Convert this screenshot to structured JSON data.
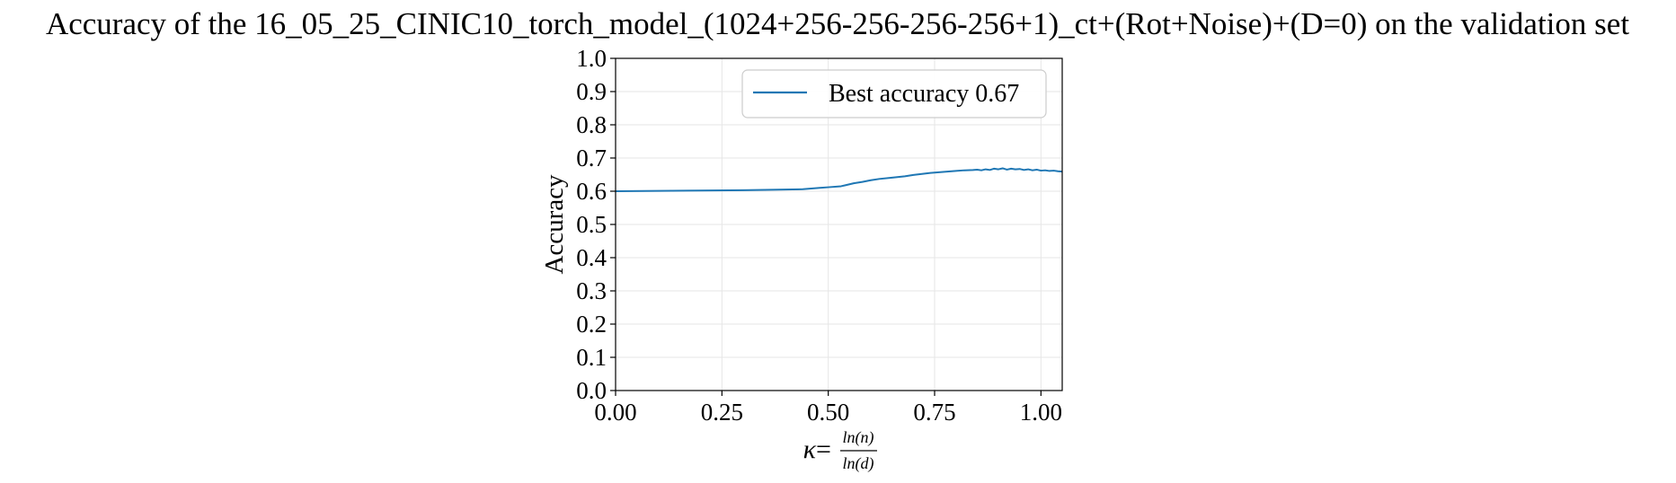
{
  "chart_data": {
    "type": "line",
    "title": "Accuracy of the 16_05_25_CINIC10_torch_model_(1024+256-256-256-256+1)_ct+(Rot+Noise)+(D=0) on the validation set",
    "ylabel": "Accuracy",
    "xlabel": {
      "symbol": "κ",
      "equals": "=",
      "numerator": "ln(n)",
      "denominator": "ln(d)"
    },
    "xlim": [
      0.0,
      1.05
    ],
    "ylim": [
      0.0,
      1.0
    ],
    "xticks": [
      0.0,
      0.25,
      0.5,
      0.75,
      1.0
    ],
    "xtick_labels": [
      "0.00",
      "0.25",
      "0.50",
      "0.75",
      "1.00"
    ],
    "yticks": [
      0.0,
      0.1,
      0.2,
      0.3,
      0.4,
      0.5,
      0.6,
      0.7,
      0.8,
      0.9,
      1.0
    ],
    "ytick_labels": [
      "0.0",
      "0.1",
      "0.2",
      "0.3",
      "0.4",
      "0.5",
      "0.6",
      "0.7",
      "0.8",
      "0.9",
      "1.0"
    ],
    "grid": true,
    "legend_position": "top-right",
    "series": [
      {
        "name": "Best accuracy 0.67",
        "color": "#1f77b4",
        "x": [
          0.0,
          0.1,
          0.2,
          0.3,
          0.35,
          0.4,
          0.44,
          0.48,
          0.5,
          0.53,
          0.54,
          0.56,
          0.58,
          0.6,
          0.62,
          0.65,
          0.68,
          0.7,
          0.72,
          0.74,
          0.75,
          0.77,
          0.79,
          0.8,
          0.82,
          0.84,
          0.85,
          0.86,
          0.87,
          0.88,
          0.89,
          0.9,
          0.91,
          0.92,
          0.93,
          0.94,
          0.95,
          0.96,
          0.97,
          0.98,
          0.99,
          1.0,
          1.01,
          1.02,
          1.03,
          1.04,
          1.05
        ],
        "y": [
          0.6,
          0.601,
          0.602,
          0.603,
          0.604,
          0.605,
          0.606,
          0.61,
          0.612,
          0.615,
          0.618,
          0.624,
          0.628,
          0.633,
          0.637,
          0.641,
          0.645,
          0.649,
          0.652,
          0.655,
          0.656,
          0.658,
          0.66,
          0.661,
          0.663,
          0.664,
          0.665,
          0.663,
          0.666,
          0.664,
          0.668,
          0.666,
          0.669,
          0.665,
          0.668,
          0.666,
          0.667,
          0.664,
          0.666,
          0.663,
          0.665,
          0.662,
          0.663,
          0.661,
          0.662,
          0.66,
          0.659
        ]
      }
    ]
  }
}
